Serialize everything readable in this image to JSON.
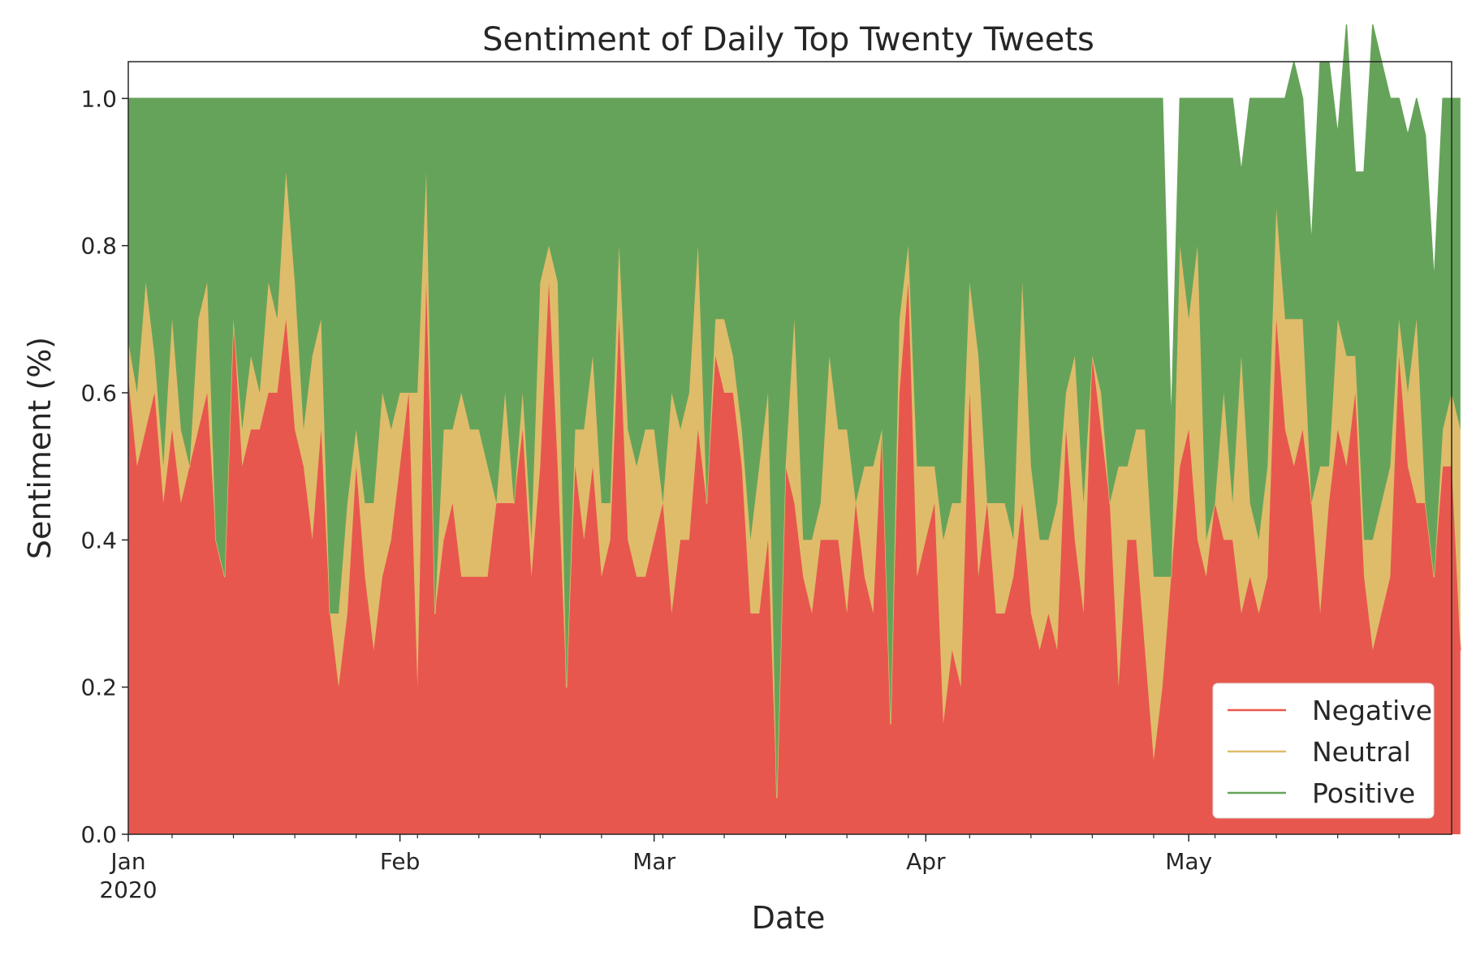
{
  "chart_data": {
    "type": "area",
    "stacked": true,
    "title": "Sentiment of Daily Top Twenty Tweets",
    "xlabel": "Date",
    "ylabel": "Sentiment (%)",
    "ylim": [
      0,
      1.05
    ],
    "yticks": [
      "0.0",
      "0.2",
      "0.4",
      "0.6",
      "0.8",
      "1.0"
    ],
    "xlim": [
      "2020-01-01",
      "2020-05-31"
    ],
    "xticks": [
      {
        "date": "2020-01-01",
        "label": "Jan",
        "sublabel": "2020"
      },
      {
        "date": "2020-02-01",
        "label": "Feb",
        "sublabel": ""
      },
      {
        "date": "2020-03-01",
        "label": "Mar",
        "sublabel": ""
      },
      {
        "date": "2020-04-01",
        "label": "Apr",
        "sublabel": ""
      },
      {
        "date": "2020-05-01",
        "label": "May",
        "sublabel": ""
      }
    ],
    "grid": false,
    "legend_position": "lower-right",
    "x_start": "2020-01-01",
    "x_step": "1 day",
    "series": [
      {
        "name": "Negative",
        "color": "#e8574e",
        "values": [
          0.62,
          0.5,
          0.55,
          0.6,
          0.45,
          0.55,
          0.45,
          0.5,
          0.55,
          0.6,
          0.4,
          0.35,
          0.7,
          0.5,
          0.55,
          0.55,
          0.6,
          0.6,
          0.7,
          0.55,
          0.5,
          0.4,
          0.55,
          0.3,
          0.2,
          0.3,
          0.5,
          0.35,
          0.25,
          0.35,
          0.4,
          0.5,
          0.6,
          0.2,
          0.75,
          0.3,
          0.4,
          0.45,
          0.35,
          0.35,
          0.35,
          0.35,
          0.45,
          0.45,
          0.45,
          0.55,
          0.35,
          0.5,
          0.75,
          0.5,
          0.2,
          0.5,
          0.4,
          0.5,
          0.35,
          0.4,
          0.7,
          0.4,
          0.35,
          0.35,
          0.4,
          0.45,
          0.3,
          0.4,
          0.4,
          0.55,
          0.45,
          0.65,
          0.6,
          0.6,
          0.5,
          0.3,
          0.3,
          0.4,
          0.05,
          0.5,
          0.45,
          0.35,
          0.3,
          0.4,
          0.4,
          0.4,
          0.3,
          0.45,
          0.35,
          0.3,
          0.55,
          0.15,
          0.6,
          0.75,
          0.35,
          0.4,
          0.45,
          0.15,
          0.25,
          0.2,
          0.6,
          0.35,
          0.45,
          0.3,
          0.3,
          0.35,
          0.45,
          0.3,
          0.25,
          0.3,
          0.25,
          0.55,
          0.4,
          0.3,
          0.65,
          0.55,
          0.45,
          0.2,
          0.4,
          0.4,
          0.25,
          0.1,
          0.2,
          0.35,
          0.5,
          0.55,
          0.4,
          0.35,
          0.45,
          0.4,
          0.4,
          0.3,
          0.35,
          0.3,
          0.35,
          0.7,
          0.55,
          0.5,
          0.55,
          0.45,
          0.3,
          0.45,
          0.55,
          0.5,
          0.6,
          0.35,
          0.25,
          0.3,
          0.35,
          0.65,
          0.5,
          0.45,
          0.45,
          0.35,
          0.5,
          0.5,
          0.25
        ]
      },
      {
        "name": "Neutral",
        "color": "#dfbc6a",
        "values": [
          0.05,
          0.1,
          0.2,
          0.05,
          0.05,
          0.15,
          0.1,
          0.0,
          0.15,
          0.15,
          0.0,
          0.0,
          0.0,
          0.05,
          0.1,
          0.05,
          0.15,
          0.1,
          0.2,
          0.2,
          0.05,
          0.25,
          0.15,
          0.0,
          0.1,
          0.15,
          0.05,
          0.1,
          0.2,
          0.25,
          0.15,
          0.1,
          0.0,
          0.4,
          0.15,
          0.0,
          0.15,
          0.1,
          0.25,
          0.2,
          0.2,
          0.15,
          0.0,
          0.15,
          0.0,
          0.05,
          0.05,
          0.25,
          0.05,
          0.25,
          0.0,
          0.05,
          0.15,
          0.15,
          0.1,
          0.05,
          0.1,
          0.15,
          0.15,
          0.2,
          0.15,
          0.0,
          0.3,
          0.15,
          0.2,
          0.25,
          0.0,
          0.05,
          0.1,
          0.05,
          0.05,
          0.1,
          0.2,
          0.2,
          0.0,
          0.0,
          0.25,
          0.05,
          0.1,
          0.05,
          0.25,
          0.15,
          0.25,
          0.0,
          0.15,
          0.2,
          0.0,
          0.0,
          0.1,
          0.05,
          0.15,
          0.1,
          0.05,
          0.25,
          0.2,
          0.25,
          0.15,
          0.3,
          0.0,
          0.15,
          0.15,
          0.05,
          0.3,
          0.2,
          0.15,
          0.1,
          0.2,
          0.05,
          0.25,
          0.15,
          0.0,
          0.05,
          0.0,
          0.3,
          0.1,
          0.15,
          0.3,
          0.25,
          0.15,
          0.0,
          0.3,
          0.15,
          0.4,
          0.05,
          0.0,
          0.2,
          0.05,
          0.35,
          0.1,
          0.1,
          0.15,
          0.15,
          0.15,
          0.2,
          0.15,
          0.0,
          0.2,
          0.05,
          0.15,
          0.15,
          0.05,
          0.05,
          0.15,
          0.15,
          0.15,
          0.05,
          0.1,
          0.25,
          0.0,
          0.0,
          0.05,
          0.1,
          0.3
        ]
      },
      {
        "name": "Positive",
        "color": "#66a35a",
        "values": [
          0.33,
          0.4,
          0.25,
          0.35,
          0.5,
          0.3,
          0.45,
          0.5,
          0.3,
          0.25,
          0.6,
          0.65,
          0.3,
          0.45,
          0.35,
          0.4,
          0.25,
          0.3,
          0.1,
          0.25,
          0.45,
          0.35,
          0.3,
          0.7,
          0.7,
          0.55,
          0.45,
          0.55,
          0.55,
          0.4,
          0.45,
          0.4,
          0.4,
          0.4,
          0.1,
          0.7,
          0.45,
          0.45,
          0.4,
          0.45,
          0.45,
          0.5,
          0.55,
          0.4,
          0.55,
          0.4,
          0.6,
          0.25,
          0.2,
          0.25,
          0.8,
          0.45,
          0.45,
          0.35,
          0.55,
          0.55,
          0.2,
          0.45,
          0.5,
          0.45,
          0.45,
          0.55,
          0.4,
          0.45,
          0.4,
          0.2,
          0.55,
          0.3,
          0.3,
          0.35,
          0.45,
          0.6,
          0.5,
          0.4,
          0.95,
          0.5,
          0.3,
          0.6,
          0.6,
          0.55,
          0.35,
          0.45,
          0.45,
          0.55,
          0.5,
          0.5,
          0.45,
          0.85,
          0.3,
          0.2,
          0.5,
          0.5,
          0.5,
          0.6,
          0.55,
          0.55,
          0.25,
          0.35,
          0.55,
          0.55,
          0.55,
          0.6,
          0.25,
          0.5,
          0.6,
          0.6,
          0.55,
          0.4,
          0.35,
          0.55,
          0.35,
          0.4,
          0.55,
          0.5,
          0.5,
          0.45,
          0.45,
          0.65,
          0.65,
          0.2,
          0.2,
          0.3,
          0.2,
          0.6,
          0.55,
          0.4,
          0.55,
          0.25,
          0.55,
          0.6,
          0.5,
          0.15,
          0.3,
          0.35,
          0.3,
          0.35,
          0.55,
          0.55,
          0.25,
          0.45,
          0.25,
          0.5,
          0.7,
          0.6,
          0.5,
          0.3,
          0.35,
          0.3,
          0.5,
          0.4,
          0.45,
          0.4,
          0.45
        ]
      }
    ]
  }
}
